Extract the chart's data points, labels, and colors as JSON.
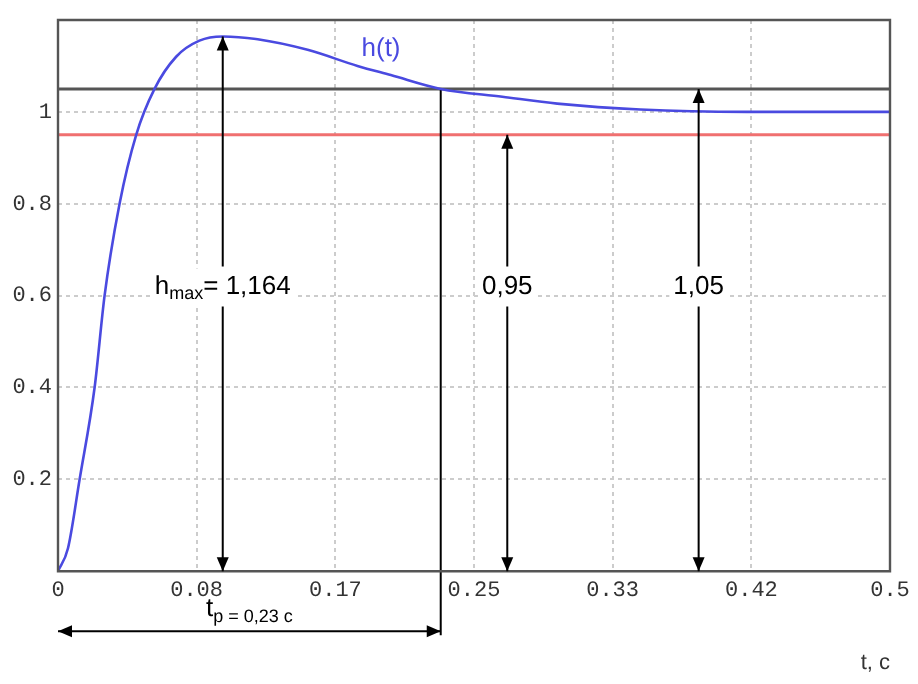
{
  "chart_data": {
    "type": "line",
    "xlabel": "t, c",
    "x": [
      0,
      0.006,
      0.013,
      0.022,
      0.028,
      0.037,
      0.047,
      0.058,
      0.071,
      0.085,
      0.099,
      0.12,
      0.15,
      0.18,
      0.2,
      0.23,
      0.267,
      0.3,
      0.35,
      0.414,
      0.5
    ],
    "series": [
      {
        "name": "h(t)",
        "color": "#4a4ae0",
        "values": [
          0,
          0.05,
          0.2,
          0.4,
          0.6,
          0.8,
          0.95,
          1.05,
          1.12,
          1.155,
          1.164,
          1.158,
          1.135,
          1.1,
          1.08,
          1.05,
          1.033,
          1.018,
          1.005,
          1.0,
          1.0
        ]
      }
    ],
    "xlim": [
      0,
      0.5
    ],
    "xticks": [
      0,
      {
        "value": 0.0833,
        "label": "0.08"
      },
      {
        "value": 0.1667,
        "label": "0.17"
      },
      {
        "value": 0.25,
        "label": "0.25"
      },
      {
        "value": 0.3333,
        "label": "0.33"
      },
      {
        "value": 0.4167,
        "label": "0.42"
      },
      0.5
    ],
    "ylim": [
      0,
      1.2
    ],
    "yticks": [
      0.2,
      0.4,
      0.6,
      0.8,
      1
    ],
    "grid": true,
    "marker": "none",
    "line_style": "solid",
    "ref_lines": [
      {
        "axis": "y",
        "value": 1.05,
        "color": "#555555"
      },
      {
        "axis": "y",
        "value": 0.95,
        "color": "#f07070"
      },
      {
        "axis": "x",
        "value": 0.23,
        "color": "#000000",
        "label": "t$_{p = 0,23 c}$"
      }
    ],
    "annotations": [
      {
        "text": "h$_{max}$= 1,164",
        "x": 0.099,
        "y": 1.164
      },
      {
        "text": "0,95",
        "x": 0.27,
        "y": 0.95
      },
      {
        "text": "1,05",
        "x": 0.385,
        "y": 1.05
      }
    ]
  }
}
